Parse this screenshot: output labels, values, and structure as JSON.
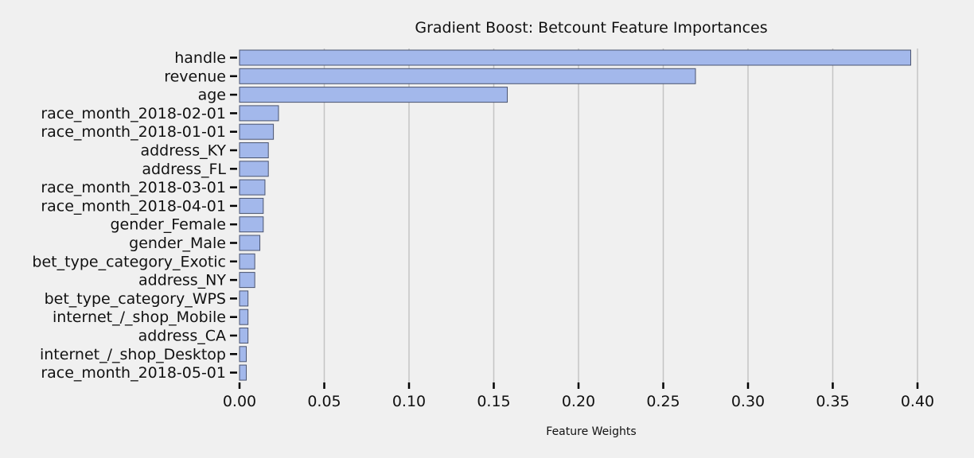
{
  "chart_data": {
    "type": "bar",
    "orientation": "horizontal",
    "title": "Gradient Boost: Betcount Feature Importances",
    "xlabel": "Feature Weights",
    "ylabel": "",
    "xlim": [
      0,
      0.4
    ],
    "xticks": [
      "0.00",
      "0.05",
      "0.10",
      "0.15",
      "0.20",
      "0.25",
      "0.30",
      "0.35",
      "0.40"
    ],
    "grid": "vertical",
    "categories": [
      "handle",
      "revenue",
      "age",
      "race_month_2018-02-01",
      "race_month_2018-01-01",
      "address_KY",
      "address_FL",
      "race_month_2018-03-01",
      "race_month_2018-04-01",
      "gender_Female",
      "gender_Male",
      "bet_type_category_Exotic",
      "address_NY",
      "bet_type_category_WPS",
      "internet_/_shop_Mobile",
      "address_CA",
      "internet_/_shop_Desktop",
      "race_month_2018-05-01"
    ],
    "values": [
      0.396,
      0.269,
      0.158,
      0.023,
      0.02,
      0.017,
      0.017,
      0.015,
      0.014,
      0.014,
      0.012,
      0.009,
      0.009,
      0.005,
      0.005,
      0.005,
      0.004,
      0.004
    ],
    "colors": {
      "bar": "#a3b8eb",
      "bar_edge": "#4a5470",
      "grid": "#c4c4c4",
      "background": "#f0f0f0"
    }
  }
}
